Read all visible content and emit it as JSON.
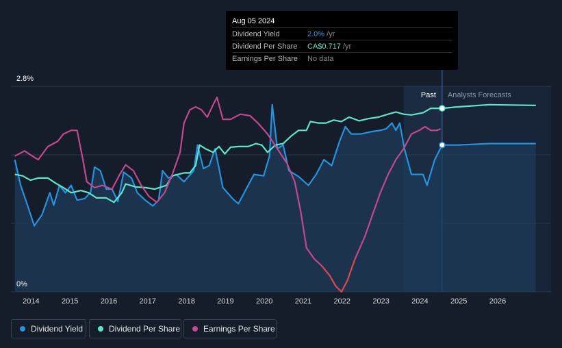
{
  "tooltip": {
    "date": "Aug 05 2024",
    "rows": [
      {
        "label": "Dividend Yield",
        "value": "2.0%",
        "unit": " /yr",
        "color": "#3b9ae8"
      },
      {
        "label": "Dividend Per Share",
        "value": "CA$0.717",
        "unit": " /yr",
        "color": "#5ee6c8"
      },
      {
        "label": "Earnings Per Share",
        "value": "No data",
        "unit": "",
        "color": "#8c8c8c"
      }
    ]
  },
  "regions": {
    "past": "Past",
    "forecast": "Analysts Forecasts"
  },
  "legend": [
    {
      "label": "Dividend Yield",
      "color": "#2394df"
    },
    {
      "label": "Dividend Per Share",
      "color": "#5ee6c8"
    },
    {
      "label": "Earnings Per Share",
      "color": "#c5478c"
    }
  ],
  "chart_data": {
    "type": "line",
    "y_tick_labels": [
      "2.8%",
      "0%"
    ],
    "ylim": [
      0,
      2.8
    ],
    "xlim": [
      2013.5,
      2027.0
    ],
    "x_ticks": [
      2014,
      2015,
      2016,
      2017,
      2018,
      2019,
      2020,
      2021,
      2022,
      2023,
      2024,
      2025,
      2026
    ],
    "past_start": 2023.6,
    "tooltip_x": 2024.59,
    "series": [
      {
        "name": "Dividend Yield",
        "color": "#2394df",
        "points": [
          [
            2013.6,
            1.8
          ],
          [
            2013.75,
            1.45
          ],
          [
            2013.9,
            1.22
          ],
          [
            2014.1,
            0.9
          ],
          [
            2014.3,
            1.05
          ],
          [
            2014.5,
            1.35
          ],
          [
            2014.6,
            1.18
          ],
          [
            2014.75,
            1.45
          ],
          [
            2014.9,
            1.35
          ],
          [
            2015.05,
            1.45
          ],
          [
            2015.2,
            1.25
          ],
          [
            2015.4,
            1.27
          ],
          [
            2015.55,
            1.36
          ],
          [
            2015.65,
            1.7
          ],
          [
            2015.8,
            1.65
          ],
          [
            2015.95,
            1.4
          ],
          [
            2016.1,
            1.4
          ],
          [
            2016.25,
            1.23
          ],
          [
            2016.4,
            1.63
          ],
          [
            2016.6,
            1.55
          ],
          [
            2016.75,
            1.35
          ],
          [
            2016.95,
            1.25
          ],
          [
            2017.15,
            1.17
          ],
          [
            2017.3,
            1.25
          ],
          [
            2017.4,
            1.65
          ],
          [
            2017.55,
            1.55
          ],
          [
            2017.75,
            1.6
          ],
          [
            2017.95,
            1.5
          ],
          [
            2018.2,
            1.65
          ],
          [
            2018.3,
            2.0
          ],
          [
            2018.45,
            1.68
          ],
          [
            2018.6,
            1.72
          ],
          [
            2018.75,
            1.95
          ],
          [
            2018.95,
            1.42
          ],
          [
            2019.2,
            1.27
          ],
          [
            2019.35,
            1.2
          ],
          [
            2019.55,
            1.4
          ],
          [
            2019.75,
            1.6
          ],
          [
            2020.0,
            1.58
          ],
          [
            2020.15,
            1.85
          ],
          [
            2020.22,
            2.55
          ],
          [
            2020.35,
            1.95
          ],
          [
            2020.5,
            2.0
          ],
          [
            2020.65,
            1.65
          ],
          [
            2020.9,
            1.57
          ],
          [
            2021.15,
            1.45
          ],
          [
            2021.35,
            1.6
          ],
          [
            2021.55,
            1.8
          ],
          [
            2021.75,
            1.72
          ],
          [
            2021.95,
            2.05
          ],
          [
            2022.1,
            2.25
          ],
          [
            2022.25,
            2.15
          ],
          [
            2022.5,
            2.15
          ],
          [
            2022.75,
            2.18
          ],
          [
            2023.0,
            2.2
          ],
          [
            2023.15,
            2.22
          ],
          [
            2023.3,
            2.3
          ],
          [
            2023.4,
            2.2
          ],
          [
            2023.5,
            2.3
          ],
          [
            2023.62,
            1.95
          ],
          [
            2023.8,
            1.6
          ],
          [
            2024.1,
            1.6
          ],
          [
            2024.2,
            1.45
          ],
          [
            2024.4,
            1.8
          ],
          [
            2024.59,
            2.0
          ],
          [
            2025.0,
            2.0
          ],
          [
            2025.8,
            2.02
          ],
          [
            2027.0,
            2.02
          ]
        ]
      },
      {
        "name": "Dividend Per Share",
        "color": "#5ee6c8",
        "points": [
          [
            2013.6,
            1.6
          ],
          [
            2013.8,
            1.58
          ],
          [
            2014.0,
            1.52
          ],
          [
            2014.2,
            1.55
          ],
          [
            2014.45,
            1.55
          ],
          [
            2014.65,
            1.48
          ],
          [
            2014.85,
            1.42
          ],
          [
            2015.05,
            1.35
          ],
          [
            2015.3,
            1.38
          ],
          [
            2015.5,
            1.35
          ],
          [
            2015.7,
            1.28
          ],
          [
            2015.95,
            1.28
          ],
          [
            2016.15,
            1.22
          ],
          [
            2016.35,
            1.35
          ],
          [
            2016.45,
            1.47
          ],
          [
            2016.7,
            1.43
          ],
          [
            2016.95,
            1.42
          ],
          [
            2017.2,
            1.4
          ],
          [
            2017.5,
            1.45
          ],
          [
            2017.65,
            1.58
          ],
          [
            2017.8,
            1.6
          ],
          [
            2017.95,
            1.62
          ],
          [
            2018.1,
            1.62
          ],
          [
            2018.25,
            1.72
          ],
          [
            2018.35,
            2.0
          ],
          [
            2018.5,
            1.95
          ],
          [
            2018.7,
            1.9
          ],
          [
            2018.85,
            1.98
          ],
          [
            2019.0,
            1.88
          ],
          [
            2019.15,
            1.97
          ],
          [
            2019.35,
            1.98
          ],
          [
            2019.6,
            1.98
          ],
          [
            2019.8,
            2.02
          ],
          [
            2019.95,
            2.0
          ],
          [
            2020.1,
            1.9
          ],
          [
            2020.3,
            2.0
          ],
          [
            2020.5,
            2.02
          ],
          [
            2020.7,
            2.12
          ],
          [
            2020.9,
            2.2
          ],
          [
            2021.1,
            2.2
          ],
          [
            2021.2,
            2.32
          ],
          [
            2021.4,
            2.3
          ],
          [
            2021.6,
            2.3
          ],
          [
            2021.8,
            2.34
          ],
          [
            2022.0,
            2.32
          ],
          [
            2022.2,
            2.38
          ],
          [
            2022.45,
            2.33
          ],
          [
            2022.7,
            2.36
          ],
          [
            2022.95,
            2.38
          ],
          [
            2023.2,
            2.42
          ],
          [
            2023.4,
            2.45
          ],
          [
            2023.6,
            2.42
          ],
          [
            2023.8,
            2.41
          ],
          [
            2024.1,
            2.44
          ],
          [
            2024.3,
            2.5
          ],
          [
            2024.59,
            2.5
          ],
          [
            2025.0,
            2.52
          ],
          [
            2025.8,
            2.55
          ],
          [
            2027.0,
            2.54
          ]
        ]
      },
      {
        "name": "Earnings Per Share",
        "color": "#c5478c",
        "points": [
          [
            2013.6,
            1.85
          ],
          [
            2013.85,
            1.92
          ],
          [
            2014.05,
            1.85
          ],
          [
            2014.2,
            1.8
          ],
          [
            2014.45,
            1.98
          ],
          [
            2014.7,
            2.05
          ],
          [
            2014.85,
            2.15
          ],
          [
            2015.05,
            2.2
          ],
          [
            2015.2,
            2.2
          ],
          [
            2015.35,
            1.8
          ],
          [
            2015.45,
            1.5
          ],
          [
            2015.65,
            1.42
          ],
          [
            2015.85,
            1.45
          ],
          [
            2016.1,
            1.4
          ],
          [
            2016.3,
            1.6
          ],
          [
            2016.45,
            1.73
          ],
          [
            2016.65,
            1.65
          ],
          [
            2016.85,
            1.45
          ],
          [
            2017.05,
            1.3
          ],
          [
            2017.25,
            1.22
          ],
          [
            2017.45,
            1.35
          ],
          [
            2017.65,
            1.6
          ],
          [
            2017.85,
            1.9
          ],
          [
            2017.95,
            2.3
          ],
          [
            2018.1,
            2.48
          ],
          [
            2018.25,
            2.52
          ],
          [
            2018.4,
            2.48
          ],
          [
            2018.55,
            2.38
          ],
          [
            2018.7,
            2.55
          ],
          [
            2018.8,
            2.65
          ],
          [
            2018.95,
            2.35
          ],
          [
            2019.15,
            2.35
          ],
          [
            2019.4,
            2.42
          ],
          [
            2019.65,
            2.4
          ],
          [
            2019.85,
            2.3
          ],
          [
            2020.1,
            2.15
          ],
          [
            2020.35,
            1.95
          ],
          [
            2020.6,
            1.75
          ],
          [
            2020.8,
            1.5
          ],
          [
            2020.95,
            1.1
          ],
          [
            2021.1,
            0.6
          ],
          [
            2021.3,
            0.45
          ],
          [
            2021.5,
            0.35
          ],
          [
            2021.7,
            0.22
          ],
          [
            2021.85,
            0.08
          ],
          [
            2022.0,
            0.0
          ],
          [
            2022.15,
            0.15
          ],
          [
            2022.35,
            0.45
          ],
          [
            2022.6,
            0.75
          ],
          [
            2022.8,
            1.05
          ],
          [
            2023.0,
            1.35
          ],
          [
            2023.2,
            1.6
          ],
          [
            2023.4,
            1.8
          ],
          [
            2023.6,
            1.95
          ],
          [
            2023.8,
            2.15
          ],
          [
            2024.0,
            2.2
          ],
          [
            2024.15,
            2.25
          ],
          [
            2024.3,
            2.2
          ],
          [
            2024.45,
            2.2
          ],
          [
            2024.55,
            2.22
          ]
        ]
      }
    ]
  }
}
